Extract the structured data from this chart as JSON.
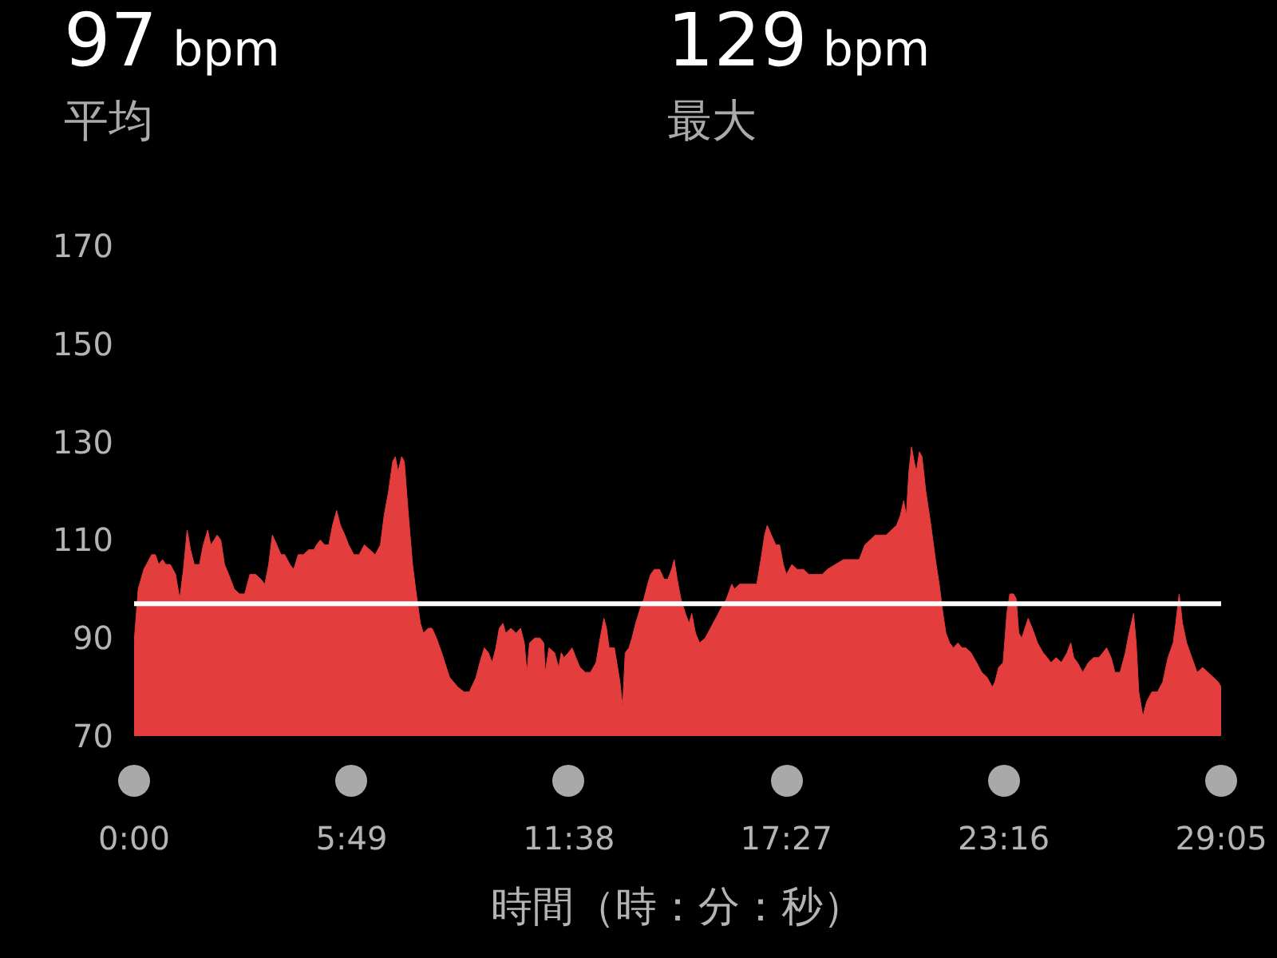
{
  "chart_data": {
    "type": "area",
    "xlabel": "時間（時：分：秒）",
    "annotations": [
      "97 bpm",
      "平均",
      "129 bpm",
      "最大"
    ],
    "x": [
      0,
      0.11,
      0.26,
      0.47,
      0.57,
      0.66,
      0.76,
      0.85,
      0.97,
      1.11,
      1.22,
      1.32,
      1.42,
      1.51,
      1.61,
      1.75,
      1.85,
      1.97,
      2.05,
      2.14,
      2.22,
      2.32,
      2.42,
      2.53,
      2.68,
      2.82,
      2.96,
      3.1,
      3.25,
      3.39,
      3.5,
      3.6,
      3.7,
      3.82,
      3.93,
      4.03,
      4.17,
      4.27,
      4.39,
      4.53,
      4.67,
      4.81,
      4.88,
      4.98,
      5.1,
      5.21,
      5.31,
      5.42,
      5.52,
      5.64,
      5.74,
      5.88,
      6.02,
      6.16,
      6.31,
      6.45,
      6.59,
      6.69,
      6.81,
      6.92,
      6.99,
      7.06,
      7.16,
      7.23,
      7.33,
      7.45,
      7.55,
      7.66,
      7.74,
      7.87,
      7.97,
      8.09,
      8.23,
      8.44,
      8.66,
      8.83,
      8.97,
      9.15,
      9.25,
      9.37,
      9.48,
      9.58,
      9.68,
      9.77,
      9.87,
      9.94,
      10.08,
      10.22,
      10.34,
      10.44,
      10.51,
      10.58,
      10.72,
      10.86,
      10.96,
      11.0,
      11.1,
      11.25,
      11.36,
      11.43,
      11.5,
      11.62,
      11.72,
      11.82,
      11.93,
      12.07,
      12.21,
      12.36,
      12.47,
      12.57,
      12.64,
      12.71,
      12.85,
      13.0,
      13.07,
      13.14,
      13.24,
      13.32,
      13.42,
      13.54,
      13.64,
      13.74,
      13.82,
      13.92,
      14.06,
      14.18,
      14.28,
      14.38,
      14.45,
      14.53,
      14.63,
      14.75,
      14.85,
      14.92,
      15.02,
      15.13,
      15.28,
      15.42,
      15.56,
      15.7,
      15.85,
      15.99,
      16.06,
      16.2,
      16.34,
      16.49,
      16.66,
      16.77,
      16.87,
      16.94,
      17.05,
      17.17,
      17.27,
      17.37,
      17.45,
      17.6,
      17.74,
      17.91,
      18.05,
      18.27,
      18.41,
      18.55,
      18.76,
      18.98,
      19.19,
      19.4,
      19.55,
      19.69,
      19.83,
      19.97,
      20.12,
      20.26,
      20.4,
      20.5,
      20.59,
      20.66,
      20.73,
      20.8,
      20.87,
      20.93,
      21.01,
      21.08,
      21.18,
      21.3,
      21.44,
      21.54,
      21.64,
      21.72,
      21.82,
      21.92,
      22.04,
      22.15,
      22.25,
      22.39,
      22.54,
      22.68,
      22.82,
      22.96,
      23.03,
      23.13,
      23.25,
      23.35,
      23.43,
      23.53,
      23.6,
      23.67,
      23.75,
      23.92,
      24.03,
      24.17,
      24.32,
      24.43,
      24.53,
      24.67,
      24.81,
      24.96,
      25.06,
      25.14,
      25.24,
      25.38,
      25.53,
      25.67,
      25.81,
      25.92,
      26.02,
      26.14,
      26.24,
      26.38,
      26.52,
      26.62,
      26.74,
      26.81,
      26.88,
      26.99,
      27.09,
      27.23,
      27.38,
      27.52,
      27.66,
      27.8,
      27.87,
      27.96,
      28.05,
      28.16,
      28.3,
      28.44,
      28.59,
      28.73,
      28.87,
      29.01,
      29.083
    ],
    "series": [
      {
        "color": "#e43d3d",
        "values": [
          89,
          100,
          104,
          107,
          107,
          105,
          106,
          105,
          105,
          103,
          98,
          104,
          112,
          108,
          105,
          105,
          109,
          112,
          109,
          110,
          111,
          110,
          105,
          103,
          100,
          99,
          99,
          103,
          103,
          102,
          101,
          105,
          111,
          109,
          107,
          107,
          105,
          104,
          107,
          107,
          108,
          108,
          109,
          110,
          109,
          109,
          113,
          116,
          113,
          111,
          109,
          107,
          107,
          109,
          108,
          107,
          109,
          115,
          120,
          126,
          127,
          124,
          127,
          126,
          116,
          105,
          99,
          93,
          91,
          92,
          92,
          90,
          87,
          82,
          80,
          79,
          79,
          82,
          85,
          88,
          87,
          85,
          88,
          92,
          93,
          91,
          92,
          91,
          92,
          89,
          83,
          89,
          90,
          90,
          89,
          83,
          88,
          87,
          84,
          87,
          86,
          87,
          88,
          86,
          84,
          83,
          83,
          85,
          90,
          94,
          92,
          88,
          88,
          81,
          76,
          87,
          88,
          90,
          93,
          96,
          98,
          101,
          103,
          104,
          104,
          102,
          102,
          104,
          106,
          102,
          98,
          95,
          93,
          95,
          91,
          89,
          90,
          92,
          94,
          96,
          98,
          101,
          100,
          101,
          101,
          101,
          101,
          106,
          111,
          113,
          111,
          109,
          109,
          105,
          103,
          105,
          104,
          104,
          103,
          103,
          103,
          104,
          105,
          106,
          106,
          106,
          109,
          110,
          111,
          111,
          111,
          112,
          113,
          115,
          118,
          115,
          124,
          129,
          126,
          124,
          128,
          127,
          120,
          114,
          106,
          101,
          95,
          91,
          89,
          88,
          89,
          88,
          88,
          87,
          85,
          83,
          82,
          80,
          81,
          84,
          85,
          95,
          99,
          99,
          98,
          91,
          90,
          94,
          92,
          89,
          87,
          86,
          85,
          86,
          85,
          87,
          89,
          86,
          85,
          83,
          85,
          86,
          86,
          87,
          88,
          86,
          83,
          83,
          87,
          91,
          95,
          89,
          79,
          74,
          77,
          79,
          79,
          81,
          86,
          89,
          93,
          99,
          93,
          89,
          86,
          83,
          84,
          83,
          82,
          81,
          80
        ]
      }
    ],
    "xlim": [
      0,
      29.083
    ],
    "xticks": [
      {
        "value": 0,
        "label": "0:00"
      },
      {
        "value": 5.817,
        "label": "5:49"
      },
      {
        "value": 11.633,
        "label": "11:38"
      },
      {
        "value": 17.45,
        "label": "17:27"
      },
      {
        "value": 23.267,
        "label": "23:16"
      },
      {
        "value": 29.083,
        "label": "29:05"
      }
    ],
    "ylim": [
      70,
      170
    ],
    "yticks": [
      70,
      90,
      110,
      130,
      150,
      170
    ],
    "ref_lines": [
      {
        "axis": "y",
        "value": 97,
        "color": "#ffffff"
      }
    ]
  }
}
